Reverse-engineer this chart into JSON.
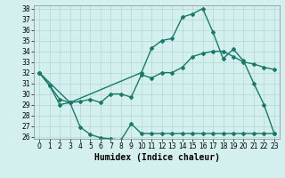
{
  "line1_x": [
    0,
    1,
    2,
    3,
    10,
    11,
    12,
    13,
    14,
    15,
    16,
    17,
    18,
    19,
    20,
    21,
    22,
    23
  ],
  "line1_y": [
    32,
    30.8,
    29.0,
    29.2,
    32.0,
    34.3,
    35.0,
    35.2,
    37.2,
    37.5,
    38.0,
    35.8,
    33.3,
    34.2,
    33.1,
    31.0,
    29.0,
    26.3
  ],
  "line2_x": [
    0,
    1,
    2,
    3,
    4,
    5,
    6,
    7,
    8,
    9,
    10,
    11,
    12,
    13,
    14,
    15,
    16,
    17,
    18,
    19,
    20,
    21,
    22,
    23
  ],
  "line2_y": [
    32,
    30.8,
    29.5,
    29.2,
    29.3,
    29.5,
    29.2,
    30.0,
    30.0,
    29.7,
    31.8,
    31.5,
    32.0,
    32.0,
    32.5,
    33.5,
    33.8,
    34.0,
    34.0,
    33.5,
    33.0,
    32.8,
    32.5,
    32.3
  ],
  "line3_x": [
    0,
    3,
    4,
    5,
    6,
    7,
    8,
    9,
    10,
    11,
    12,
    13,
    14,
    15,
    16,
    17,
    18,
    19,
    20,
    21,
    22,
    23
  ],
  "line3_y": [
    32,
    29.2,
    26.9,
    26.2,
    25.9,
    25.8,
    25.7,
    27.2,
    26.3,
    26.3,
    26.3,
    26.3,
    26.3,
    26.3,
    26.3,
    26.3,
    26.3,
    26.3,
    26.3,
    26.3,
    26.3,
    26.3
  ],
  "line_color": "#1a7a6a",
  "bg_color": "#d4f0ee",
  "grid_color": "#b0d8d4",
  "xlabel": "Humidex (Indice chaleur)",
  "ylim": [
    26,
    38
  ],
  "xlim": [
    -0.5,
    23.5
  ],
  "yticks": [
    26,
    27,
    28,
    29,
    30,
    31,
    32,
    33,
    34,
    35,
    36,
    37,
    38
  ],
  "xticks": [
    0,
    1,
    2,
    3,
    4,
    5,
    6,
    7,
    8,
    9,
    10,
    11,
    12,
    13,
    14,
    15,
    16,
    17,
    18,
    19,
    20,
    21,
    22,
    23
  ],
  "marker": "D",
  "markersize": 2,
  "linewidth": 1.0,
  "xlabel_fontsize": 7,
  "tick_fontsize": 5.5
}
